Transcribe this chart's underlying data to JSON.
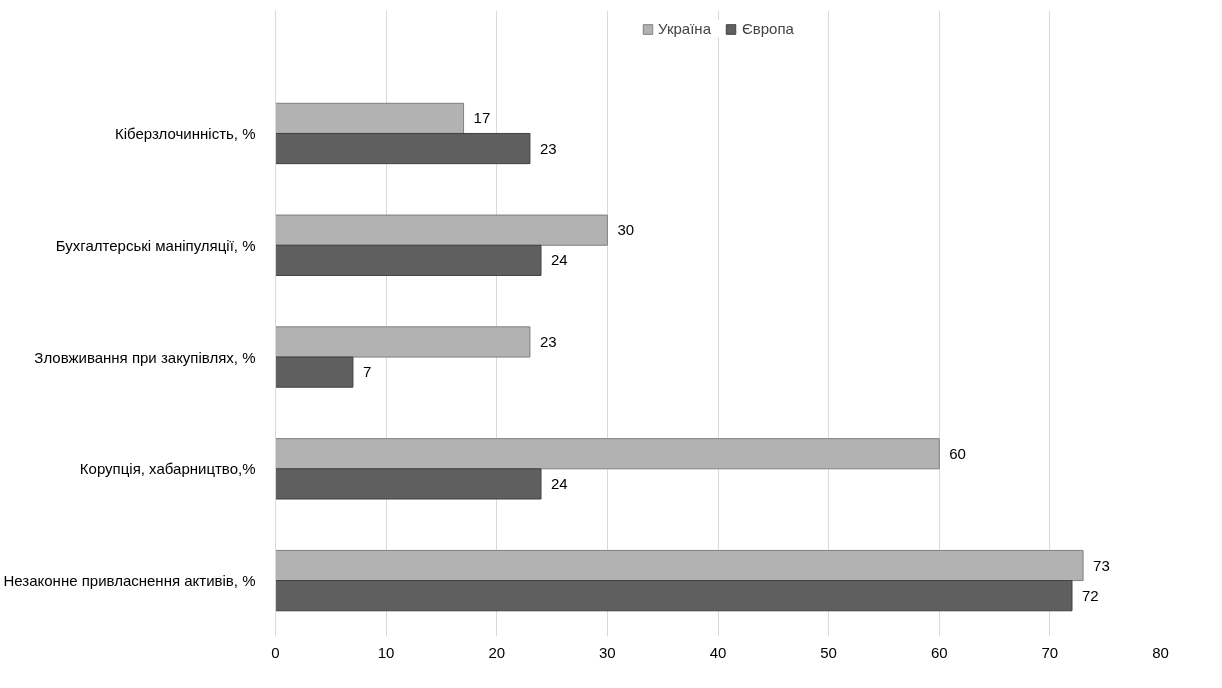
{
  "chart_data": {
    "type": "bar",
    "orientation": "horizontal",
    "categories": [
      "Кіберзлочинність, %",
      "Бухгалтерські маніпуляції, %",
      "Зловживання при закупівлях, %",
      "Корупція, хабарництво,%",
      "Незаконне привласнення активів, %"
    ],
    "series": [
      {
        "name": "Україна",
        "color": "#b2b2b2",
        "values": [
          17,
          30,
          23,
          60,
          73
        ]
      },
      {
        "name": "Європа",
        "color": "#5f5f5f",
        "values": [
          23,
          24,
          7,
          24,
          72
        ]
      }
    ],
    "xlim": [
      0,
      80
    ],
    "xticks": [
      0,
      10,
      20,
      30,
      40,
      50,
      60,
      70,
      80
    ],
    "grid": "x",
    "legend": "top",
    "data_labels": true
  }
}
